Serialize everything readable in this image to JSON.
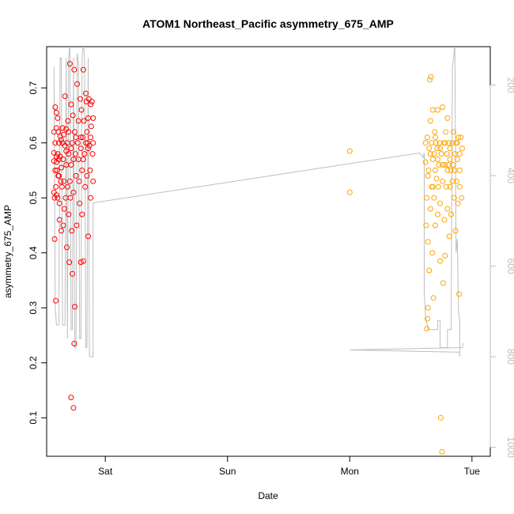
{
  "chart_data": {
    "type": "scatter",
    "title": "ATOM1 Northeast_Pacific asymmetry_675_AMP",
    "xlabel": "Date",
    "ylabel": "asymmetry_675_AMP",
    "x_ticks": [
      {
        "t": 1.0,
        "label": "Sat"
      },
      {
        "t": 2.0,
        "label": "Sun"
      },
      {
        "t": 3.0,
        "label": "Mon"
      },
      {
        "t": 4.0,
        "label": "Tue"
      }
    ],
    "y_ticks": [
      "0.1",
      "0.2",
      "0.3",
      "0.4",
      "0.5",
      "0.6",
      "0.7"
    ],
    "y_right_ticks": [
      "200",
      "400",
      "600",
      "800",
      "1000"
    ],
    "xlim": [
      0.52,
      4.15
    ],
    "ylim": [
      0.03,
      0.775
    ],
    "y_right_lim": [
      1020,
      115
    ],
    "y_right_reversed": true,
    "grid": false,
    "colors": {
      "series1": "#ff0000",
      "series2": "#ffa500",
      "depth_line": "#bebebe",
      "axis": "#000000",
      "right_axis": "#bebebe"
    },
    "series": [
      {
        "color": "#ff0000",
        "marker": "open-circle",
        "points": [
          [
            0.58,
            0.582
          ],
          [
            0.58,
            0.567
          ],
          [
            0.58,
            0.51
          ],
          [
            0.585,
            0.5
          ],
          [
            0.585,
            0.425
          ],
          [
            0.59,
            0.665
          ],
          [
            0.59,
            0.6
          ],
          [
            0.59,
            0.55
          ],
          [
            0.595,
            0.52
          ],
          [
            0.595,
            0.313
          ],
          [
            0.6,
            0.655
          ],
          [
            0.6,
            0.627
          ],
          [
            0.6,
            0.575
          ],
          [
            0.6,
            0.565
          ],
          [
            0.605,
            0.55
          ],
          [
            0.61,
            0.645
          ],
          [
            0.61,
            0.58
          ],
          [
            0.61,
            0.5
          ],
          [
            0.615,
            0.62
          ],
          [
            0.615,
            0.54
          ],
          [
            0.62,
            0.6
          ],
          [
            0.62,
            0.57
          ],
          [
            0.625,
            0.49
          ],
          [
            0.625,
            0.46
          ],
          [
            0.63,
            0.612
          ],
          [
            0.63,
            0.575
          ],
          [
            0.635,
            0.53
          ],
          [
            0.64,
            0.555
          ],
          [
            0.64,
            0.44
          ],
          [
            0.645,
            0.52
          ],
          [
            0.65,
            0.627
          ],
          [
            0.65,
            0.6
          ],
          [
            0.655,
            0.57
          ],
          [
            0.655,
            0.45
          ],
          [
            0.66,
            0.615
          ],
          [
            0.665,
            0.48
          ],
          [
            0.67,
            0.685
          ],
          [
            0.67,
            0.595
          ],
          [
            0.675,
            0.5
          ],
          [
            0.68,
            0.625
          ],
          [
            0.68,
            0.56
          ],
          [
            0.685,
            0.41
          ],
          [
            0.69,
            0.6
          ],
          [
            0.69,
            0.52
          ],
          [
            0.695,
            0.64
          ],
          [
            0.7,
            0.58
          ],
          [
            0.7,
            0.47
          ],
          [
            0.705,
            0.383
          ],
          [
            0.71,
            0.744
          ],
          [
            0.71,
            0.53
          ],
          [
            0.715,
            0.5
          ],
          [
            0.72,
            0.67
          ],
          [
            0.72,
            0.56
          ],
          [
            0.725,
            0.44
          ],
          [
            0.73,
            0.6
          ],
          [
            0.73,
            0.362
          ],
          [
            0.735,
            0.65
          ],
          [
            0.74,
            0.51
          ],
          [
            0.745,
            0.235
          ],
          [
            0.75,
            0.302
          ],
          [
            0.72,
            0.137
          ],
          [
            0.74,
            0.118
          ],
          [
            0.745,
            0.733
          ],
          [
            0.75,
            0.62
          ],
          [
            0.755,
            0.58
          ],
          [
            0.76,
            0.54
          ],
          [
            0.765,
            0.45
          ],
          [
            0.77,
            0.707
          ],
          [
            0.775,
            0.6
          ],
          [
            0.78,
            0.64
          ],
          [
            0.785,
            0.53
          ],
          [
            0.79,
            0.49
          ],
          [
            0.795,
            0.68
          ],
          [
            0.8,
            0.59
          ],
          [
            0.8,
            0.383
          ],
          [
            0.805,
            0.66
          ],
          [
            0.81,
            0.55
          ],
          [
            0.81,
            0.47
          ],
          [
            0.815,
            0.61
          ],
          [
            0.82,
            0.385
          ],
          [
            0.82,
            0.733
          ],
          [
            0.825,
            0.64
          ],
          [
            0.83,
            0.58
          ],
          [
            0.835,
            0.52
          ],
          [
            0.84,
            0.69
          ],
          [
            0.845,
            0.675
          ],
          [
            0.85,
            0.62
          ],
          [
            0.85,
            0.54
          ],
          [
            0.855,
            0.6
          ],
          [
            0.86,
            0.645
          ],
          [
            0.86,
            0.43
          ],
          [
            0.865,
            0.68
          ],
          [
            0.87,
            0.595
          ],
          [
            0.875,
            0.55
          ],
          [
            0.88,
            0.67
          ],
          [
            0.88,
            0.5
          ],
          [
            0.885,
            0.63
          ],
          [
            0.89,
            0.675
          ],
          [
            0.895,
            0.58
          ],
          [
            0.9,
            0.645
          ],
          [
            0.9,
            0.53
          ],
          [
            0.58,
            0.62
          ],
          [
            0.6,
            0.505
          ],
          [
            0.62,
            0.54
          ],
          [
            0.64,
            0.605
          ],
          [
            0.66,
            0.53
          ],
          [
            0.68,
            0.585
          ],
          [
            0.7,
            0.62
          ],
          [
            0.72,
            0.59
          ],
          [
            0.74,
            0.57
          ],
          [
            0.76,
            0.61
          ],
          [
            0.78,
            0.57
          ],
          [
            0.8,
            0.61
          ],
          [
            0.82,
            0.57
          ],
          [
            0.84,
            0.6
          ],
          [
            0.86,
            0.59
          ],
          [
            0.88,
            0.61
          ],
          [
            0.9,
            0.6
          ]
        ]
      },
      {
        "color": "#ffa500",
        "marker": "open-circle",
        "points": [
          [
            3.0,
            0.585
          ],
          [
            3.0,
            0.51
          ],
          [
            3.62,
            0.6
          ],
          [
            3.62,
            0.565
          ],
          [
            3.625,
            0.45
          ],
          [
            3.63,
            0.262
          ],
          [
            3.63,
            0.5
          ],
          [
            3.635,
            0.61
          ],
          [
            3.64,
            0.42
          ],
          [
            3.64,
            0.3
          ],
          [
            3.645,
            0.55
          ],
          [
            3.65,
            0.368
          ],
          [
            3.65,
            0.59
          ],
          [
            3.655,
            0.715
          ],
          [
            3.66,
            0.48
          ],
          [
            3.66,
            0.64
          ],
          [
            3.665,
            0.72
          ],
          [
            3.67,
            0.52
          ],
          [
            3.67,
            0.6
          ],
          [
            3.675,
            0.4
          ],
          [
            3.68,
            0.57
          ],
          [
            3.68,
            0.66
          ],
          [
            3.685,
            0.318
          ],
          [
            3.69,
            0.5
          ],
          [
            3.69,
            0.58
          ],
          [
            3.695,
            0.62
          ],
          [
            3.7,
            0.45
          ],
          [
            3.7,
            0.55
          ],
          [
            3.705,
            0.6
          ],
          [
            3.71,
            0.535
          ],
          [
            3.715,
            0.59
          ],
          [
            3.72,
            0.47
          ],
          [
            3.72,
            0.66
          ],
          [
            3.725,
            0.52
          ],
          [
            3.73,
            0.56
          ],
          [
            3.735,
            0.6
          ],
          [
            3.74,
            0.49
          ],
          [
            3.74,
            0.385
          ],
          [
            3.745,
            0.1
          ],
          [
            3.75,
            0.58
          ],
          [
            3.755,
            0.038
          ],
          [
            3.76,
            0.665
          ],
          [
            3.76,
            0.53
          ],
          [
            3.765,
            0.345
          ],
          [
            3.77,
            0.6
          ],
          [
            3.775,
            0.46
          ],
          [
            3.78,
            0.56
          ],
          [
            3.78,
            0.395
          ],
          [
            3.785,
            0.62
          ],
          [
            3.79,
            0.52
          ],
          [
            3.795,
            0.58
          ],
          [
            3.8,
            0.645
          ],
          [
            3.8,
            0.48
          ],
          [
            3.805,
            0.56
          ],
          [
            3.81,
            0.6
          ],
          [
            3.815,
            0.43
          ],
          [
            3.82,
            0.52
          ],
          [
            3.82,
            0.59
          ],
          [
            3.825,
            0.55
          ],
          [
            3.83,
            0.47
          ],
          [
            3.84,
            0.6
          ],
          [
            3.845,
            0.56
          ],
          [
            3.85,
            0.62
          ],
          [
            3.855,
            0.5
          ],
          [
            3.86,
            0.58
          ],
          [
            3.865,
            0.44
          ],
          [
            3.87,
            0.6
          ],
          [
            3.875,
            0.53
          ],
          [
            3.88,
            0.57
          ],
          [
            3.885,
            0.49
          ],
          [
            3.89,
            0.61
          ],
          [
            3.895,
            0.325
          ],
          [
            3.9,
            0.58
          ],
          [
            3.9,
            0.52
          ],
          [
            3.91,
            0.61
          ],
          [
            3.915,
            0.5
          ],
          [
            3.92,
            0.59
          ],
          [
            3.64,
            0.54
          ],
          [
            3.66,
            0.58
          ],
          [
            3.68,
            0.52
          ],
          [
            3.7,
            0.61
          ],
          [
            3.72,
            0.57
          ],
          [
            3.74,
            0.59
          ],
          [
            3.76,
            0.56
          ],
          [
            3.78,
            0.6
          ],
          [
            3.8,
            0.55
          ],
          [
            3.82,
            0.57
          ],
          [
            3.84,
            0.53
          ],
          [
            3.86,
            0.55
          ],
          [
            3.88,
            0.6
          ],
          [
            3.9,
            0.55
          ],
          [
            3.635,
            0.28
          ]
        ]
      }
    ],
    "depth_line": [
      [
        0.58,
        160
      ],
      [
        0.59,
        690
      ],
      [
        0.6,
        730
      ],
      [
        0.62,
        730
      ],
      [
        0.63,
        140
      ],
      [
        0.64,
        140
      ],
      [
        0.65,
        730
      ],
      [
        0.67,
        730
      ],
      [
        0.68,
        140
      ],
      [
        0.69,
        760
      ],
      [
        0.7,
        140
      ],
      [
        0.71,
        110
      ],
      [
        0.72,
        740
      ],
      [
        0.73,
        740
      ],
      [
        0.74,
        140
      ],
      [
        0.75,
        780
      ],
      [
        0.76,
        780
      ],
      [
        0.77,
        130
      ],
      [
        0.78,
        150
      ],
      [
        0.79,
        760
      ],
      [
        0.8,
        760
      ],
      [
        0.81,
        140
      ],
      [
        0.82,
        100
      ],
      [
        0.83,
        140
      ],
      [
        0.84,
        780
      ],
      [
        0.85,
        780
      ],
      [
        0.86,
        140
      ],
      [
        0.87,
        800
      ],
      [
        0.9,
        800
      ],
      [
        0.9,
        460
      ],
      [
        3.57,
        350
      ],
      [
        3.6,
        360
      ],
      [
        3.61,
        350
      ],
      [
        3.61,
        660
      ],
      [
        3.62,
        710
      ],
      [
        3.64,
        740
      ],
      [
        3.72,
        740
      ],
      [
        3.72,
        720
      ],
      [
        3.74,
        720
      ],
      [
        3.74,
        780
      ],
      [
        3.8,
        780
      ],
      [
        3.8,
        740
      ],
      [
        3.83,
        740
      ],
      [
        3.84,
        160
      ],
      [
        3.85,
        140
      ],
      [
        3.86,
        110
      ],
      [
        3.87,
        570
      ],
      [
        3.88,
        540
      ],
      [
        3.89,
        700
      ],
      [
        3.9,
        720
      ],
      [
        3.9,
        800
      ],
      [
        3.9,
        790
      ],
      [
        3.0,
        785
      ],
      [
        3.9,
        780
      ],
      [
        3.92,
        780
      ],
      [
        3.93,
        770
      ]
    ]
  }
}
